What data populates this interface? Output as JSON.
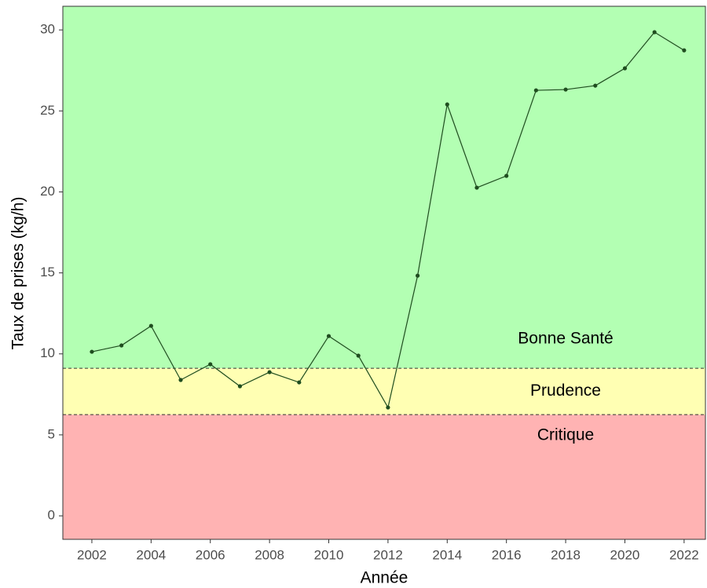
{
  "chart_data": {
    "type": "line",
    "x_label": "Année",
    "y_label": "Taux de prises (kg/h)",
    "x": [
      2002,
      2003,
      2004,
      2005,
      2006,
      2007,
      2008,
      2009,
      2010,
      2011,
      2012,
      2013,
      2014,
      2015,
      2016,
      2017,
      2018,
      2019,
      2020,
      2021,
      2022
    ],
    "values": [
      10.13,
      10.52,
      11.73,
      8.39,
      9.36,
      8.0,
      8.87,
      8.24,
      11.1,
      9.89,
      6.69,
      14.83,
      25.4,
      20.26,
      20.99,
      26.27,
      26.32,
      26.56,
      27.63,
      29.86,
      28.74
    ],
    "color": "#1f4d1f",
    "xlim": [
      2001.02,
      2022.72
    ],
    "ylim": [
      -1.45,
      31.46
    ],
    "xticks": [
      2002,
      2004,
      2006,
      2008,
      2010,
      2012,
      2014,
      2016,
      2018,
      2020,
      2022
    ],
    "yticks": [
      0,
      5,
      10,
      15,
      20,
      25,
      30
    ],
    "thresholds": [
      6.25,
      9.11
    ],
    "zones": [
      {
        "label": "Critique",
        "color": "#ffb3b3"
      },
      {
        "label": "Prudence",
        "color": "#ffffb3"
      },
      {
        "label": "Bonne Santé",
        "color": "#b3ffb3"
      }
    ]
  }
}
